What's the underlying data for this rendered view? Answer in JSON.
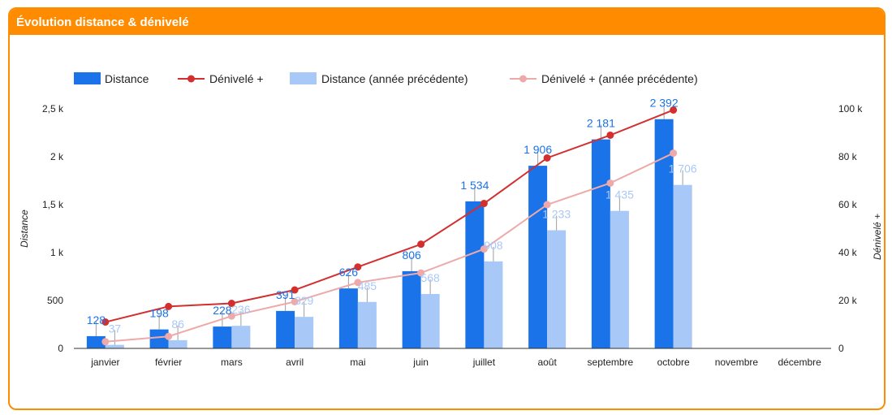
{
  "header": {
    "title": "Évolution distance & dénivelé"
  },
  "colors": {
    "accent": "#ff8c00",
    "distance": "#1a73e8",
    "distance_prev": "#a8c8f8",
    "denivele": "#d32f2f",
    "denivele_prev": "#eeaaaa",
    "label_distance": "#1a73e8",
    "label_distance_prev": "#a8c8f8"
  },
  "chart_data": {
    "type": "bar",
    "title": "Évolution distance & dénivelé",
    "categories": [
      "janvier",
      "février",
      "mars",
      "avril",
      "mai",
      "juin",
      "juillet",
      "août",
      "septembre",
      "octobre",
      "novembre",
      "décembre"
    ],
    "series": [
      {
        "name": "Distance",
        "kind": "bar",
        "axis": "left",
        "values": [
          128,
          198,
          228,
          391,
          626,
          806,
          1534,
          1906,
          2181,
          2392,
          null,
          null
        ],
        "labels": [
          "128",
          "198",
          "228",
          "391",
          "626",
          "806",
          "1 534",
          "1 906",
          "2 181",
          "2 392",
          "",
          ""
        ]
      },
      {
        "name": "Dénivelé +",
        "kind": "line",
        "axis": "right",
        "values": [
          11000,
          17500,
          18800,
          24400,
          34000,
          43500,
          60500,
          79500,
          89000,
          99500,
          null,
          null
        ]
      },
      {
        "name": "Distance (année précédente)",
        "kind": "bar",
        "axis": "left",
        "values": [
          37,
          86,
          236,
          329,
          485,
          568,
          908,
          1233,
          1435,
          1706,
          null,
          null
        ],
        "labels": [
          "37",
          "86",
          "236",
          "329",
          "485",
          "568",
          "908",
          "1 233",
          "1 435",
          "1 706",
          "",
          ""
        ]
      },
      {
        "name": "Dénivelé + (année précédente)",
        "kind": "line",
        "axis": "right",
        "values": [
          2800,
          5000,
          13500,
          19500,
          27500,
          31500,
          41500,
          60000,
          69000,
          81500,
          null,
          null
        ]
      }
    ],
    "y_left": {
      "label": "Distance",
      "range": [
        0,
        2500
      ],
      "ticks": [
        0,
        500,
        1000,
        1500,
        2000,
        2500
      ],
      "tick_labels": [
        "0",
        "500",
        "1 k",
        "1,5 k",
        "2 k",
        "2,5 k"
      ]
    },
    "y_right": {
      "label": "Dénivelé +",
      "range": [
        0,
        100000
      ],
      "ticks": [
        0,
        20000,
        40000,
        60000,
        80000,
        100000
      ],
      "tick_labels": [
        "0",
        "20 k",
        "40 k",
        "60 k",
        "80 k",
        "100 k"
      ]
    },
    "legend": "top",
    "grid": false
  }
}
